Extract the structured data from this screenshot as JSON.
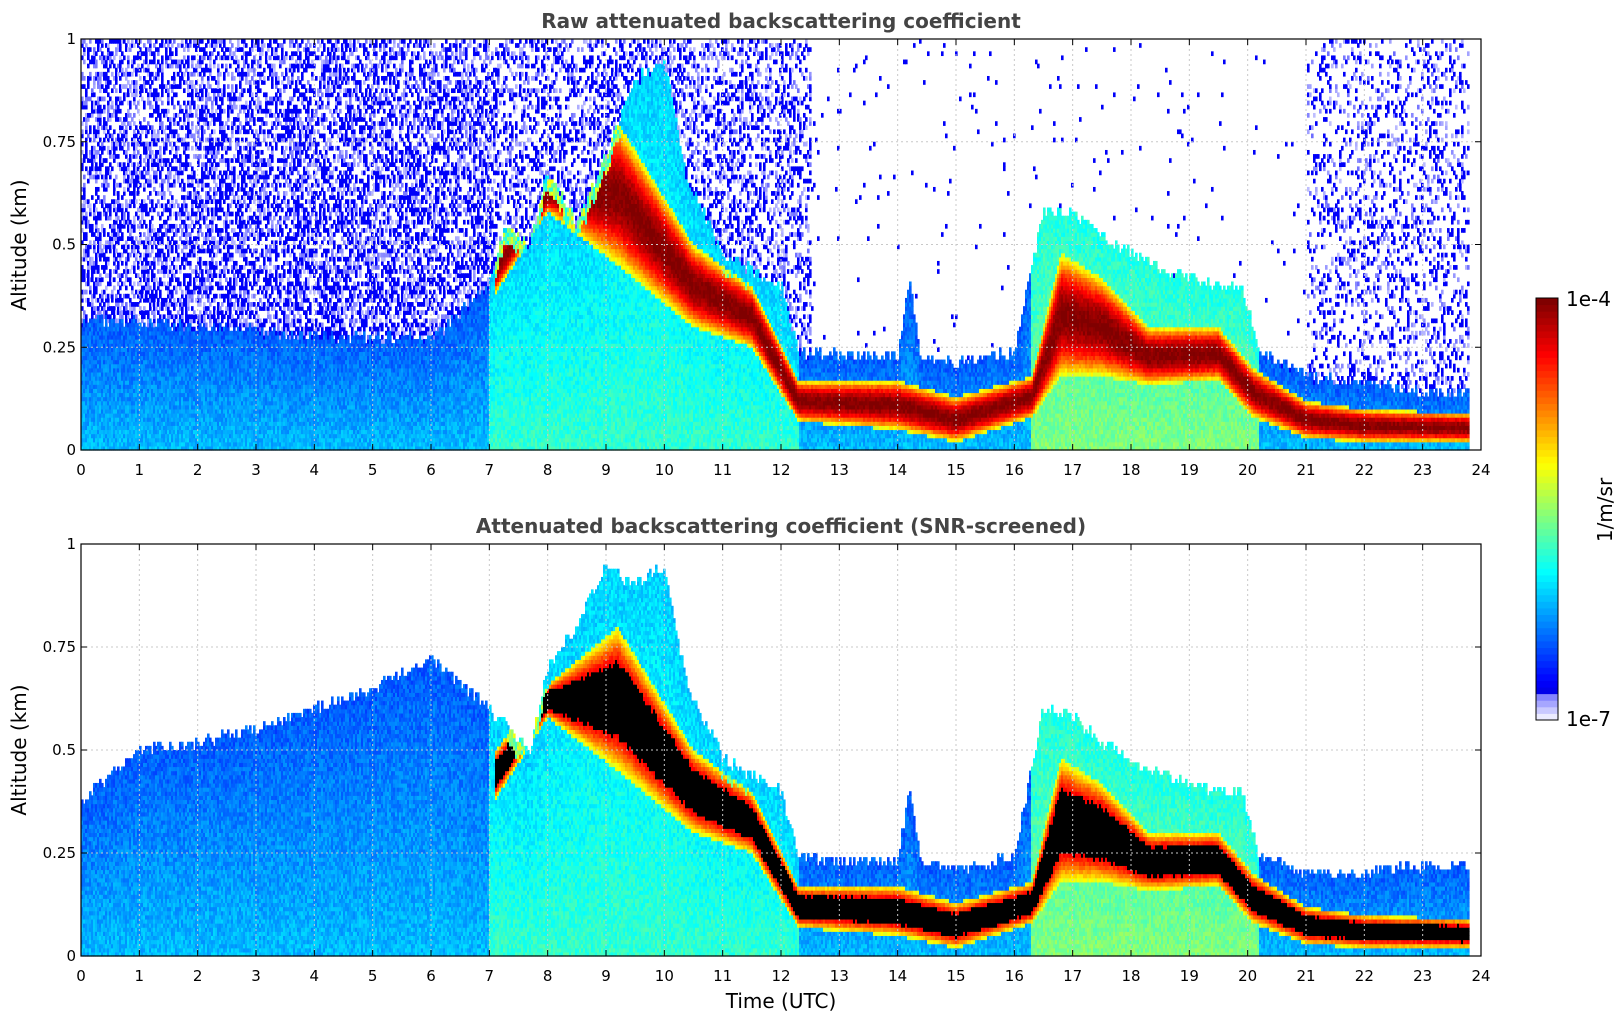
{
  "chart_data": [
    {
      "type": "heatmap",
      "title": "Raw attenuated backscattering coefficient",
      "ylabel": "Altitude (km)",
      "xlabel": "",
      "xlim": [
        0,
        24
      ],
      "ylim": [
        0,
        1
      ],
      "xticks": [
        "0",
        "1",
        "2",
        "3",
        "4",
        "5",
        "6",
        "7",
        "8",
        "9",
        "10",
        "11",
        "12",
        "13",
        "14",
        "15",
        "16",
        "17",
        "18",
        "19",
        "20",
        "21",
        "22",
        "23",
        "24"
      ],
      "yticks": [
        "0",
        "0.25",
        "0.5",
        "0.75",
        "1"
      ],
      "grid": true,
      "noise": "raw",
      "layer_top_km": [
        [
          0,
          0.32
        ],
        [
          2,
          0.3
        ],
        [
          4,
          0.28
        ],
        [
          6,
          0.27
        ],
        [
          7,
          0.4
        ],
        [
          7.3,
          0.56
        ],
        [
          7.7,
          0.5
        ],
        [
          8,
          0.68
        ],
        [
          8.5,
          0.55
        ],
        [
          9,
          0.72
        ],
        [
          9.5,
          0.9
        ],
        [
          10,
          0.95
        ],
        [
          10.4,
          0.65
        ],
        [
          10.7,
          0.57
        ],
        [
          11,
          0.48
        ],
        [
          11.5,
          0.44
        ],
        [
          12,
          0.4
        ],
        [
          12.3,
          0.24
        ],
        [
          13,
          0.23
        ],
        [
          14,
          0.23
        ],
        [
          14.2,
          0.42
        ],
        [
          14.4,
          0.23
        ],
        [
          15,
          0.21
        ],
        [
          16,
          0.24
        ],
        [
          16.5,
          0.58
        ],
        [
          17,
          0.58
        ],
        [
          17.5,
          0.52
        ],
        [
          18,
          0.48
        ],
        [
          18.5,
          0.44
        ],
        [
          19,
          0.42
        ],
        [
          19.5,
          0.4
        ],
        [
          19.9,
          0.4
        ],
        [
          20.2,
          0.24
        ],
        [
          21,
          0.18
        ],
        [
          22,
          0.16
        ],
        [
          23,
          0.14
        ],
        [
          23.8,
          0.14
        ]
      ],
      "cloud_layer": [
        [
          7.1,
          0.38,
          0.5
        ],
        [
          8,
          0.58,
          0.66
        ],
        [
          9.2,
          0.45,
          0.8
        ],
        [
          10.5,
          0.3,
          0.5
        ],
        [
          11.5,
          0.25,
          0.4
        ],
        [
          12.3,
          0.07,
          0.17
        ],
        [
          14,
          0.05,
          0.17
        ],
        [
          15,
          0.02,
          0.13
        ],
        [
          16.3,
          0.08,
          0.18
        ],
        [
          16.8,
          0.18,
          0.48
        ],
        [
          17.5,
          0.18,
          0.42
        ],
        [
          18.3,
          0.16,
          0.3
        ],
        [
          19.5,
          0.17,
          0.3
        ],
        [
          20.1,
          0.08,
          0.2
        ],
        [
          21,
          0.03,
          0.12
        ],
        [
          22,
          0.02,
          0.1
        ],
        [
          23.8,
          0.02,
          0.09
        ]
      ]
    },
    {
      "type": "heatmap",
      "title": "Attenuated backscattering coefficient (SNR-screened)",
      "ylabel": "Altitude (km)",
      "xlabel": "Time (UTC)",
      "xlim": [
        0,
        24
      ],
      "ylim": [
        0,
        1
      ],
      "xticks": [
        "0",
        "1",
        "2",
        "3",
        "4",
        "5",
        "6",
        "7",
        "8",
        "9",
        "10",
        "11",
        "12",
        "13",
        "14",
        "15",
        "16",
        "17",
        "18",
        "19",
        "20",
        "21",
        "22",
        "23",
        "24"
      ],
      "yticks": [
        "0",
        "0.25",
        "0.5",
        "0.75",
        "1"
      ],
      "grid": true,
      "noise": "screened",
      "saturated_color": "#000000",
      "layer_top_km": [
        [
          0,
          0.38
        ],
        [
          1,
          0.5
        ],
        [
          2,
          0.52
        ],
        [
          3,
          0.55
        ],
        [
          4,
          0.6
        ],
        [
          5,
          0.65
        ],
        [
          6,
          0.72
        ],
        [
          7,
          0.6
        ],
        [
          7.3,
          0.56
        ],
        [
          7.7,
          0.5
        ],
        [
          8,
          0.7
        ],
        [
          8.5,
          0.8
        ],
        [
          9,
          0.95
        ],
        [
          9.5,
          0.9
        ],
        [
          10,
          0.95
        ],
        [
          10.4,
          0.65
        ],
        [
          10.7,
          0.57
        ],
        [
          11,
          0.48
        ],
        [
          11.5,
          0.44
        ],
        [
          12,
          0.4
        ],
        [
          12.3,
          0.24
        ],
        [
          13,
          0.23
        ],
        [
          14,
          0.23
        ],
        [
          14.2,
          0.4
        ],
        [
          14.4,
          0.23
        ],
        [
          15,
          0.21
        ],
        [
          16,
          0.24
        ],
        [
          16.5,
          0.6
        ],
        [
          17,
          0.58
        ],
        [
          17.5,
          0.52
        ],
        [
          18,
          0.48
        ],
        [
          18.5,
          0.44
        ],
        [
          19,
          0.42
        ],
        [
          19.5,
          0.4
        ],
        [
          19.9,
          0.4
        ],
        [
          20.2,
          0.24
        ],
        [
          21,
          0.2
        ],
        [
          22,
          0.2
        ],
        [
          23,
          0.22
        ],
        [
          23.8,
          0.22
        ]
      ],
      "cloud_layer": [
        [
          7.1,
          0.38,
          0.5
        ],
        [
          8,
          0.58,
          0.66
        ],
        [
          9.2,
          0.45,
          0.8
        ],
        [
          10.5,
          0.3,
          0.5
        ],
        [
          11.5,
          0.25,
          0.4
        ],
        [
          12.3,
          0.07,
          0.17
        ],
        [
          14,
          0.05,
          0.17
        ],
        [
          15,
          0.02,
          0.13
        ],
        [
          16.3,
          0.08,
          0.18
        ],
        [
          16.8,
          0.18,
          0.48
        ],
        [
          17.5,
          0.18,
          0.42
        ],
        [
          18.3,
          0.16,
          0.3
        ],
        [
          19.5,
          0.17,
          0.3
        ],
        [
          20.1,
          0.08,
          0.2
        ],
        [
          21,
          0.03,
          0.12
        ],
        [
          22,
          0.02,
          0.1
        ],
        [
          23.8,
          0.02,
          0.09
        ]
      ]
    }
  ],
  "colorbar": {
    "label": "1/m/sr",
    "max_label": "1e-4",
    "min_label": "1e-7",
    "colormap": "jet"
  }
}
